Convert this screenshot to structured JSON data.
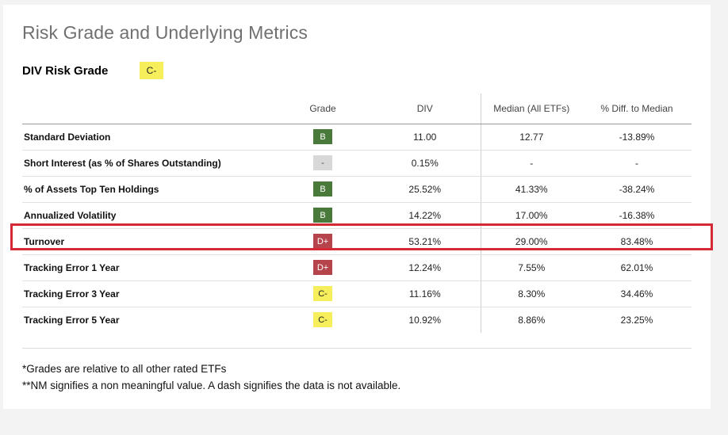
{
  "title": "Risk Grade and Underlying Metrics",
  "risk_grade": {
    "label": "DIV Risk Grade",
    "grade": "C-"
  },
  "columns": [
    "",
    "Grade",
    "DIV",
    "Median (All ETFs)",
    "% Diff. to Median"
  ],
  "rows": [
    {
      "label": "Standard Deviation",
      "grade": "B",
      "div": "11.00",
      "median": "12.77",
      "diff": "-13.89%"
    },
    {
      "label": "Short Interest (as % of Shares Outstanding)",
      "grade": "-",
      "div": "0.15%",
      "median": "-",
      "diff": "-"
    },
    {
      "label": "% of Assets Top Ten Holdings",
      "grade": "B",
      "div": "25.52%",
      "median": "41.33%",
      "diff": "-38.24%"
    },
    {
      "label": "Annualized Volatility",
      "grade": "B",
      "div": "14.22%",
      "median": "17.00%",
      "diff": "-16.38%"
    },
    {
      "label": "Turnover",
      "grade": "D+",
      "div": "53.21%",
      "median": "29.00%",
      "diff": "83.48%"
    },
    {
      "label": "Tracking Error 1 Year",
      "grade": "D+",
      "div": "12.24%",
      "median": "7.55%",
      "diff": "62.01%"
    },
    {
      "label": "Tracking Error 3 Year",
      "grade": "C-",
      "div": "11.16%",
      "median": "8.30%",
      "diff": "34.46%"
    },
    {
      "label": "Tracking Error 5 Year",
      "grade": "C-",
      "div": "10.92%",
      "median": "8.86%",
      "diff": "23.25%"
    }
  ],
  "grade_colors": {
    "B": "#4a7a3b",
    "D+": "#b5444d",
    "C-": "#f6ee5a",
    "-": "#d8d8d8"
  },
  "highlight_color": "#d42a36",
  "footnotes": [
    "*Grades are relative to all other rated ETFs",
    "**NM signifies a non meaningful value. A dash signifies the data is not available."
  ]
}
